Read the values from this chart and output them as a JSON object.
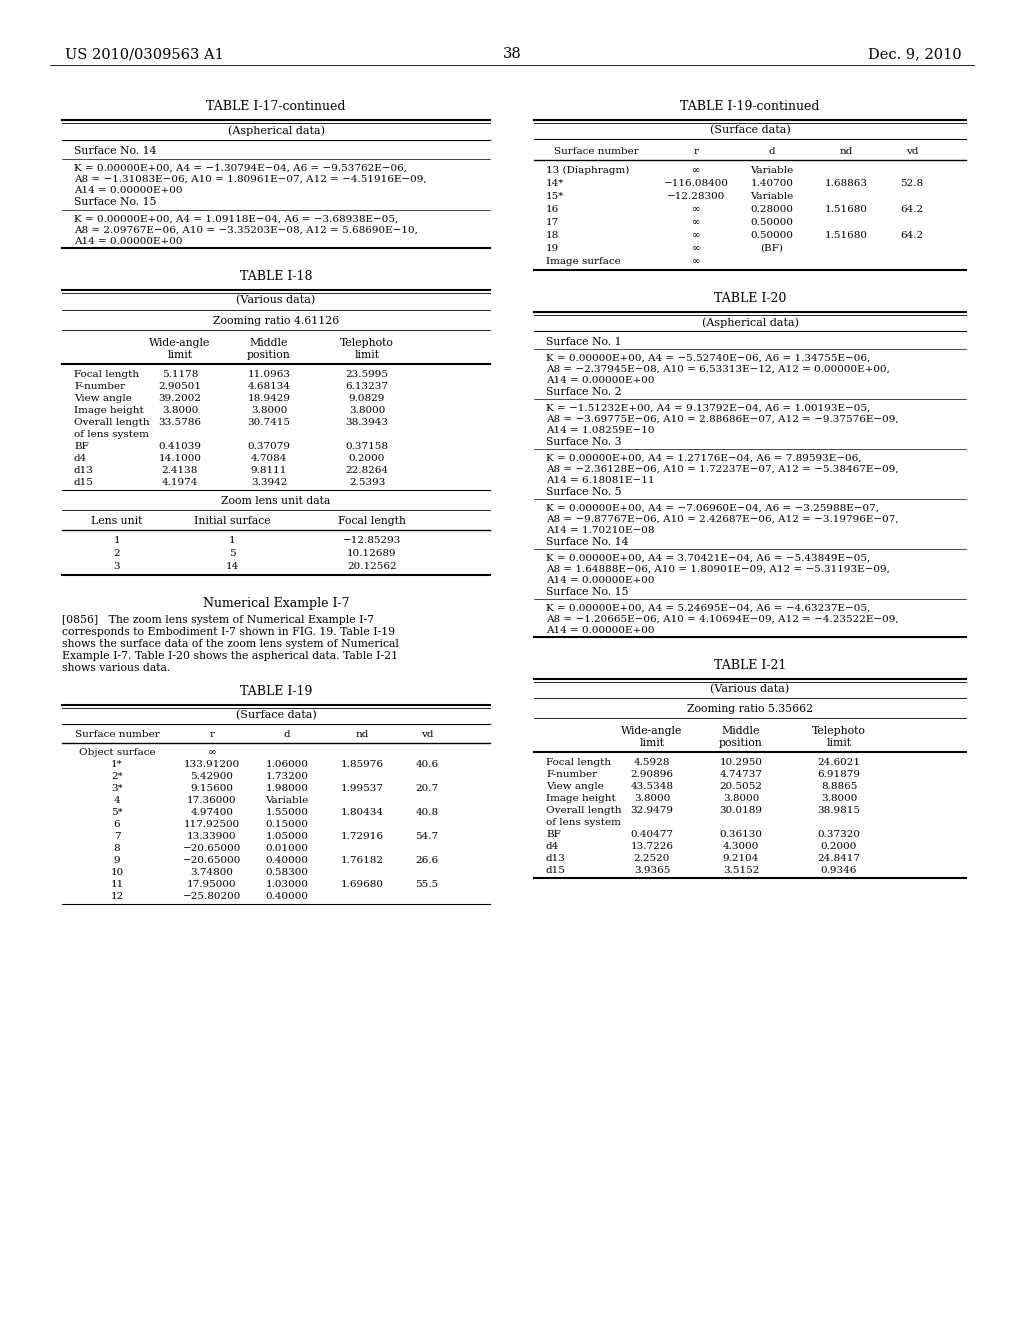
{
  "page_number": "38",
  "patent_number": "US 2010/0309563 A1",
  "patent_date": "Dec. 9, 2010",
  "background_color": "#ffffff",
  "table_17_continued": {
    "title": "TABLE I-17-continued",
    "subtitle": "(Aspherical data)",
    "surface14_header": "Surface No. 14",
    "surface14_lines": [
      "K = 0.00000E+00, A4 = −1.30794E−04, A6 = −9.53762E−06,",
      "A8 = −1.31083E−06, A10 = 1.80961E−07, A12 = −4.51916E−09,",
      "A14 = 0.00000E+00"
    ],
    "surface15_header": "Surface No. 15",
    "surface15_lines": [
      "K = 0.00000E+00, A4 = 1.09118E−04, A6 = −3.68938E−05,",
      "A8 = 2.09767E−06, A10 = −3.35203E−08, A12 = 5.68690E−10,",
      "A14 = 0.00000E+00"
    ]
  },
  "table_18": {
    "title": "TABLE I-18",
    "subtitle": "(Various data)",
    "zooming_ratio": "Zooming ratio 4.61126",
    "rows": [
      [
        "Focal length",
        "5.1178",
        "11.0963",
        "23.5995"
      ],
      [
        "F-number",
        "2.90501",
        "4.68134",
        "6.13237"
      ],
      [
        "View angle",
        "39.2002",
        "18.9429",
        "9.0829"
      ],
      [
        "Image height",
        "3.8000",
        "3.8000",
        "3.8000"
      ],
      [
        "Overall length",
        "33.5786",
        "30.7415",
        "38.3943"
      ],
      [
        "of lens system",
        "",
        "",
        ""
      ],
      [
        "BF",
        "0.41039",
        "0.37079",
        "0.37158"
      ],
      [
        "d4",
        "14.1000",
        "4.7084",
        "0.2000"
      ],
      [
        "d13",
        "2.4138",
        "9.8111",
        "22.8264"
      ],
      [
        "d15",
        "4.1974",
        "3.3942",
        "2.5393"
      ]
    ],
    "zoom_rows": [
      [
        "1",
        "1",
        "−12.85293"
      ],
      [
        "2",
        "5",
        "10.12689"
      ],
      [
        "3",
        "14",
        "20.12562"
      ]
    ]
  },
  "table_19": {
    "title": "TABLE I-19",
    "subtitle": "(Surface data)",
    "rows": [
      [
        "Object surface",
        "∞",
        "",
        "",
        ""
      ],
      [
        "1*",
        "133.91200",
        "1.06000",
        "1.85976",
        "40.6"
      ],
      [
        "2*",
        "5.42900",
        "1.73200",
        "",
        ""
      ],
      [
        "3*",
        "9.15600",
        "1.98000",
        "1.99537",
        "20.7"
      ],
      [
        "4",
        "17.36000",
        "Variable",
        "",
        ""
      ],
      [
        "5*",
        "4.97400",
        "1.55000",
        "1.80434",
        "40.8"
      ],
      [
        "6",
        "117.92500",
        "0.15000",
        "",
        ""
      ],
      [
        "7",
        "13.33900",
        "1.05000",
        "1.72916",
        "54.7"
      ],
      [
        "8",
        "−20.65000",
        "0.01000",
        "",
        ""
      ],
      [
        "9",
        "−20.65000",
        "0.40000",
        "1.76182",
        "26.6"
      ],
      [
        "10",
        "3.74800",
        "0.58300",
        "",
        ""
      ],
      [
        "11",
        "17.95000",
        "1.03000",
        "1.69680",
        "55.5"
      ],
      [
        "12",
        "−25.80200",
        "0.40000",
        "",
        ""
      ]
    ]
  },
  "table_19_right": {
    "title": "TABLE I-19-continued",
    "subtitle": "(Surface data)",
    "rows": [
      [
        "13 (Diaphragm)",
        "∞",
        "Variable",
        "",
        ""
      ],
      [
        "14*",
        "−116.08400",
        "1.40700",
        "1.68863",
        "52.8"
      ],
      [
        "15*",
        "−12.28300",
        "Variable",
        "",
        ""
      ],
      [
        "16",
        "∞",
        "0.28000",
        "1.51680",
        "64.2"
      ],
      [
        "17",
        "∞",
        "0.50000",
        "",
        ""
      ],
      [
        "18",
        "∞",
        "0.50000",
        "1.51680",
        "64.2"
      ],
      [
        "19",
        "∞",
        "(BF)",
        "",
        ""
      ],
      [
        "Image surface",
        "∞",
        "",
        "",
        ""
      ]
    ]
  },
  "table_20": {
    "title": "TABLE I-20",
    "subtitle": "(Aspherical data)",
    "sections": [
      {
        "header": "Surface No. 1",
        "lines": [
          "K = 0.00000E+00, A4 = −5.52740E−06, A6 = 1.34755E−06,",
          "A8 = −2.37945E−08, A10 = 6.53313E−12, A12 = 0.00000E+00,",
          "A14 = 0.00000E+00"
        ],
        "next_header": "Surface No. 2"
      },
      {
        "header": "",
        "lines": [
          "K = −1.51232E+00, A4 = 9.13792E−04, A6 = 1.00193E−05,",
          "A8 = −3.69775E−06, A10 = 2.88686E−07, A12 = −9.37576E−09,",
          "A14 = 1.08259E−10"
        ],
        "next_header": "Surface No. 3"
      },
      {
        "header": "",
        "lines": [
          "K = 0.00000E+00, A4 = 1.27176E−04, A6 = 7.89593E−06,",
          "A8 = −2.36128E−06, A10 = 1.72237E−07, A12 = −5.38467E−09,",
          "A14 = 6.18081E−11"
        ],
        "next_header": "Surface No. 5"
      },
      {
        "header": "",
        "lines": [
          "K = 0.00000E+00, A4 = −7.06960E−04, A6 = −3.25988E−07,",
          "A8 = −9.87767E−06, A10 = 2.42687E−06, A12 = −3.19796E−07,",
          "A14 = 1.70210E−08"
        ],
        "next_header": "Surface No. 14"
      },
      {
        "header": "",
        "lines": [
          "K = 0.00000E+00, A4 = 3.70421E−04, A6 = −5.43849E−05,",
          "A8 = 1.64888E−06, A10 = 1.80901E−09, A12 = −5.31193E−09,",
          "A14 = 0.00000E+00"
        ],
        "next_header": "Surface No. 15"
      },
      {
        "header": "",
        "lines": [
          "K = 0.00000E+00, A4 = 5.24695E−04, A6 = −4.63237E−05,",
          "A8 = −1.20665E−06, A10 = 4.10694E−09, A12 = −4.23522E−09,",
          "A14 = 0.00000E+00"
        ],
        "next_header": ""
      }
    ]
  },
  "table_21": {
    "title": "TABLE I-21",
    "subtitle": "(Various data)",
    "zooming_ratio": "Zooming ratio 5.35662",
    "rows": [
      [
        "Focal length",
        "4.5928",
        "10.2950",
        "24.6021"
      ],
      [
        "F-number",
        "2.90896",
        "4.74737",
        "6.91879"
      ],
      [
        "View angle",
        "43.5348",
        "20.5052",
        "8.8865"
      ],
      [
        "Image height",
        "3.8000",
        "3.8000",
        "3.8000"
      ],
      [
        "Overall length",
        "32.9479",
        "30.0189",
        "38.9815"
      ],
      [
        "of lens system",
        "",
        "",
        ""
      ],
      [
        "BF",
        "0.40477",
        "0.36130",
        "0.37320"
      ],
      [
        "d4",
        "13.7226",
        "4.3000",
        "0.2000"
      ],
      [
        "d13",
        "2.2520",
        "9.2104",
        "24.8417"
      ],
      [
        "d15",
        "3.9365",
        "3.5152",
        "0.9346"
      ]
    ]
  },
  "numerical_example_title": "Numerical Example I-7",
  "numerical_example_para": [
    "[0856]   The zoom lens system of Numerical Example I-7",
    "corresponds to Embodiment I-7 shown in FIG. 19. Table I-19",
    "shows the surface data of the zoom lens system of Numerical",
    "Example I-7. Table I-20 shows the aspherical data. Table I-21",
    "shows various data."
  ]
}
